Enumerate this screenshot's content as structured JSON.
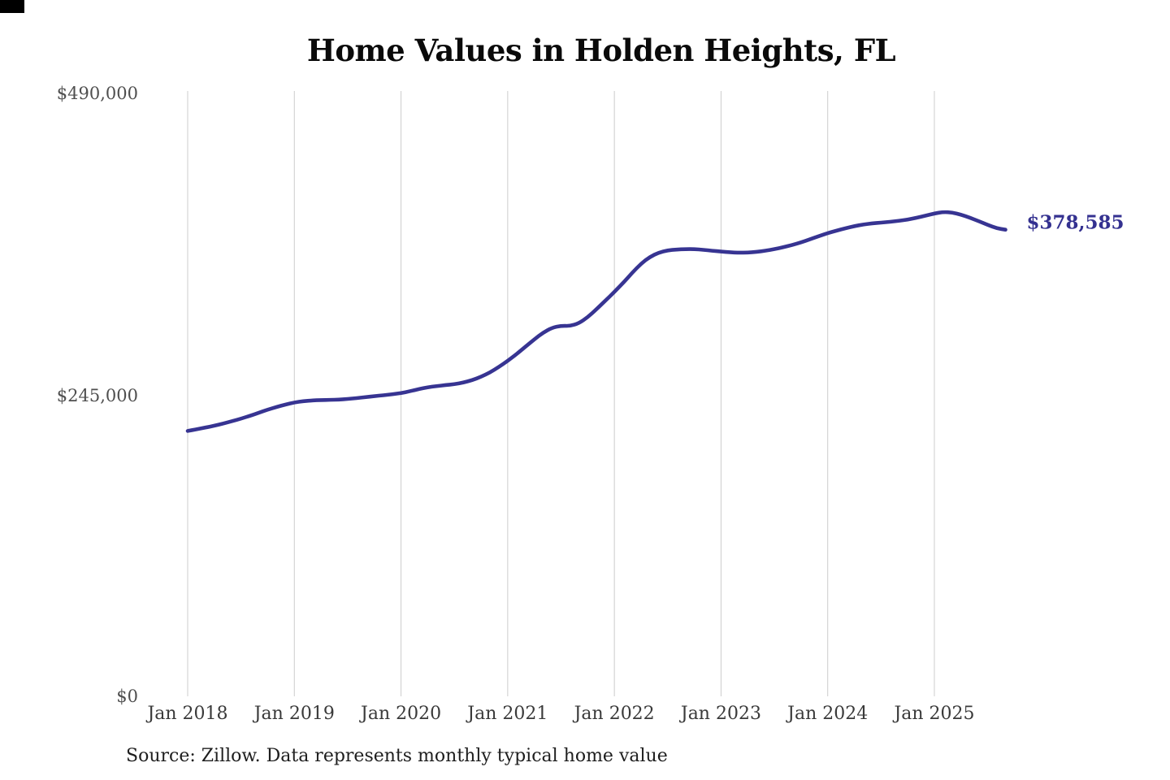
{
  "title": "Home Values in Holden Heights, FL",
  "y_axis": {
    "ticks": [
      "$490,000",
      "$245,000",
      "$0"
    ]
  },
  "x_axis": {
    "ticks": [
      "Jan 2018",
      "Jan 2019",
      "Jan 2020",
      "Jan 2021",
      "Jan 2022",
      "Jan 2023",
      "Jan 2024",
      "Jan 2025"
    ]
  },
  "end_label": "$378,585",
  "source_note": "Source: Zillow. Data represents monthly typical home value",
  "colors": {
    "line": "#373492",
    "end_label": "#343190",
    "gridline": "#cccccc",
    "title": "#0a0a0a",
    "y_tick": "#4f4f4f",
    "x_tick": "#3a3a3a",
    "source": "#1e1e1e",
    "corner_mark": "#000000",
    "background": "#ffffff"
  },
  "chart_data": {
    "type": "line",
    "title": "Home Values in Holden Heights, FL",
    "series_name": "Monthly typical home value",
    "xlabel": "",
    "ylabel": "",
    "ylim": [
      0,
      490000
    ],
    "y_tick_values": [
      0,
      245000,
      490000
    ],
    "grid": "vertical-only",
    "legend": "none",
    "line_color": "#373492",
    "final_value": 378585,
    "final_value_label": "$378,585",
    "x": [
      "2018-01",
      "2018-02",
      "2018-03",
      "2018-04",
      "2018-05",
      "2018-06",
      "2018-07",
      "2018-08",
      "2018-09",
      "2018-10",
      "2018-11",
      "2018-12",
      "2019-01",
      "2019-02",
      "2019-03",
      "2019-04",
      "2019-05",
      "2019-06",
      "2019-07",
      "2019-08",
      "2019-09",
      "2019-10",
      "2019-11",
      "2019-12",
      "2020-01",
      "2020-02",
      "2020-03",
      "2020-04",
      "2020-05",
      "2020-06",
      "2020-07",
      "2020-08",
      "2020-09",
      "2020-10",
      "2020-11",
      "2020-12",
      "2021-01",
      "2021-02",
      "2021-03",
      "2021-04",
      "2021-05",
      "2021-06",
      "2021-07",
      "2021-08",
      "2021-09",
      "2021-10",
      "2021-11",
      "2021-12",
      "2022-01",
      "2022-02",
      "2022-03",
      "2022-04",
      "2022-05",
      "2022-06",
      "2022-07",
      "2022-08",
      "2022-09",
      "2022-10",
      "2022-11",
      "2022-12",
      "2023-01",
      "2023-02",
      "2023-03",
      "2023-04",
      "2023-05",
      "2023-06",
      "2023-07",
      "2023-08",
      "2023-09",
      "2023-10",
      "2023-11",
      "2023-12",
      "2024-01",
      "2024-02",
      "2024-03",
      "2024-04",
      "2024-05",
      "2024-06",
      "2024-07",
      "2024-08",
      "2024-09",
      "2024-10",
      "2024-11",
      "2024-12",
      "2025-01",
      "2025-02",
      "2025-03",
      "2025-04",
      "2025-05",
      "2025-06",
      "2025-07",
      "2025-08",
      "2025-09"
    ],
    "values": [
      215000,
      216300,
      217800,
      219300,
      221000,
      223000,
      225000,
      227300,
      229800,
      232300,
      234500,
      236500,
      238200,
      239200,
      239800,
      240100,
      240300,
      240500,
      241000,
      241700,
      242500,
      243300,
      244000,
      244800,
      245800,
      247300,
      249000,
      250500,
      251500,
      252300,
      253000,
      254300,
      256300,
      259000,
      262500,
      267000,
      272000,
      277500,
      283500,
      289500,
      295000,
      299000,
      300500,
      300300,
      302500,
      307500,
      314000,
      321000,
      328000,
      335500,
      343500,
      351000,
      356500,
      360000,
      361800,
      362500,
      362800,
      362800,
      362300,
      361500,
      360800,
      360200,
      359900,
      360000,
      360600,
      361500,
      362800,
      364300,
      366200,
      368300,
      370800,
      373300,
      375800,
      377800,
      379800,
      381500,
      382800,
      383800,
      384300,
      385000,
      385800,
      386800,
      388300,
      390000,
      391800,
      393000,
      392600,
      390800,
      388300,
      385500,
      382500,
      379800,
      378585
    ]
  }
}
